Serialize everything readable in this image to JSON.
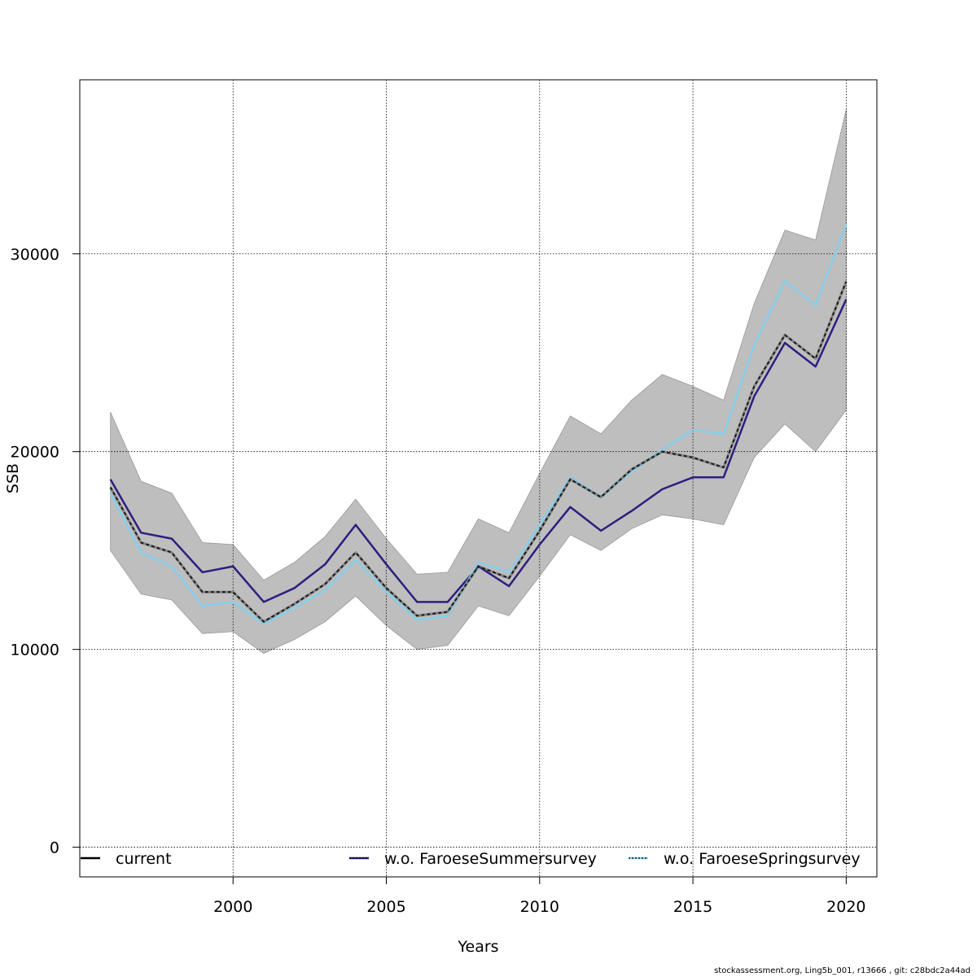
{
  "chart_data": {
    "type": "line",
    "xlabel": "Years",
    "ylabel": "SSB",
    "xlim": [
      1995,
      2021
    ],
    "ylim": [
      -1500,
      38800
    ],
    "xticks": [
      2000,
      2005,
      2010,
      2015,
      2020
    ],
    "yticks": [
      0,
      10000,
      20000,
      30000
    ],
    "grid": true,
    "legend_position": "bottom",
    "x": [
      1996,
      1997,
      1998,
      1999,
      2000,
      2001,
      2002,
      2003,
      2004,
      2005,
      2006,
      2007,
      2008,
      2009,
      2010,
      2011,
      2012,
      2013,
      2014,
      2015,
      2016,
      2017,
      2018,
      2019,
      2020
    ],
    "confidence_band": {
      "color": "#bebebe",
      "lower": [
        15000,
        12800,
        12500,
        10800,
        10900,
        9800,
        10500,
        11400,
        12700,
        11200,
        10000,
        10200,
        12200,
        11700,
        13700,
        15800,
        15000,
        16100,
        16800,
        16600,
        16300,
        19700,
        21400,
        20000,
        22100
      ],
      "upper": [
        22000,
        18500,
        17900,
        15400,
        15300,
        13500,
        14400,
        15700,
        17600,
        15600,
        13800,
        13900,
        16600,
        15900,
        18900,
        21800,
        20900,
        22600,
        23900,
        23300,
        22600,
        27500,
        31200,
        30700,
        37300
      ]
    },
    "series": [
      {
        "name": "w.o. FaroeseSummersurvey",
        "color": "#2d1e80",
        "dash": "solid",
        "width": 2.5,
        "values": [
          18600,
          15900,
          15600,
          13900,
          14200,
          12400,
          13100,
          14300,
          16300,
          14300,
          12400,
          12400,
          14200,
          13200,
          15300,
          17200,
          16000,
          17000,
          18100,
          18700,
          18700,
          22800,
          25500,
          24300,
          27700
        ]
      },
      {
        "name": "w.o. FaroeseSpringsurvey",
        "color": "#87ceeb",
        "dash": "solid",
        "width": 2.5,
        "values": [
          17900,
          14900,
          14200,
          12200,
          12400,
          11300,
          12100,
          13000,
          14500,
          12900,
          11500,
          11700,
          14400,
          13900,
          16300,
          18700,
          17700,
          19000,
          20100,
          21100,
          20900,
          25400,
          28600,
          27400,
          31500
        ]
      },
      {
        "name": "current",
        "color": "#1a1a1a",
        "dash": "4,3",
        "width": 2,
        "values": [
          18200,
          15400,
          14900,
          12900,
          12900,
          11400,
          12300,
          13300,
          14900,
          13100,
          11700,
          11900,
          14200,
          13600,
          16000,
          18600,
          17700,
          19100,
          20000,
          19700,
          19200,
          23300,
          25900,
          24700,
          28600
        ]
      }
    ],
    "legend": [
      {
        "label": "current",
        "color": "#000000"
      },
      {
        "label": "w.o. FaroeseSummersurvey",
        "color": "#2d1e80"
      },
      {
        "label": "w.o. FaroeseSpringsurvey",
        "color": "#87ceeb"
      }
    ]
  },
  "footer_text": "stockassessment.org, Ling5b_001, r13666 , git: c28bdc2a44ad"
}
